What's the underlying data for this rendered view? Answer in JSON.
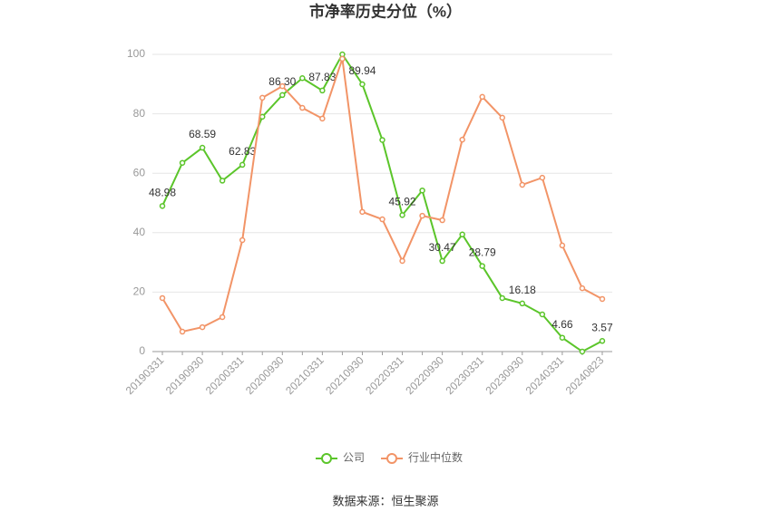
{
  "chart_data": {
    "type": "line",
    "title": "市净率历史分位（%）",
    "source": "数据来源：恒生聚源",
    "categories": [
      "20190331",
      null,
      "20190930",
      null,
      "20200331",
      null,
      "20200930",
      null,
      "20210331",
      null,
      "20210930",
      null,
      "20220331",
      null,
      "20220930",
      null,
      "20230331",
      null,
      "20230930",
      null,
      "20240331",
      null,
      "20240823"
    ],
    "series": [
      {
        "name": "公司",
        "color": "#5bc52a",
        "values": [
          48.98,
          63.5,
          68.59,
          57.5,
          62.83,
          79,
          86.3,
          92,
          87.83,
          100,
          89.94,
          71.2,
          45.92,
          54.2,
          30.47,
          39.4,
          28.79,
          18,
          16.18,
          12.5,
          4.66,
          0,
          3.57
        ],
        "value_labels": [
          "48.98",
          null,
          "68.59",
          null,
          "62.83",
          null,
          "86.30",
          null,
          "87.83",
          null,
          "89.94",
          null,
          "45.92",
          null,
          "30.47",
          null,
          "28.79",
          null,
          "16.18",
          null,
          "4.66",
          null,
          "3.57"
        ]
      },
      {
        "name": "行业中位数",
        "color": "#f29467",
        "values": [
          18,
          6.7,
          8.2,
          11.6,
          37.5,
          85.4,
          89.3,
          82,
          78.4,
          98.5,
          47,
          44.5,
          30.5,
          45.7,
          44.2,
          71.3,
          85.7,
          78.7,
          56.1,
          58.5,
          35.7,
          21.3,
          17.7
        ]
      }
    ],
    "ylim": [
      0,
      100
    ],
    "yticks": [
      0,
      20,
      40,
      60,
      80,
      100
    ],
    "grid": true
  }
}
